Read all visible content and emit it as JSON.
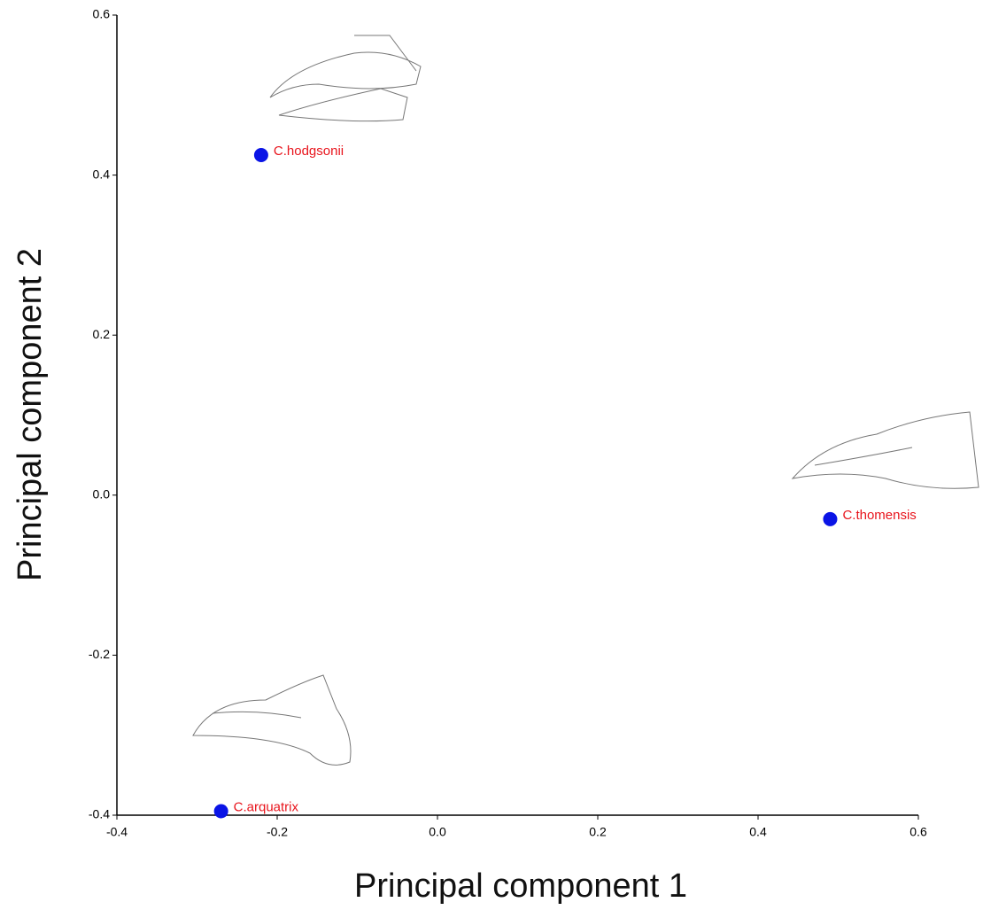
{
  "chart_data": {
    "type": "scatter",
    "xlabel": "Principal component 1",
    "ylabel": "Principal component 2",
    "xlim": [
      -0.4,
      0.6
    ],
    "ylim": [
      -0.4,
      0.6
    ],
    "xticks": [
      -0.4,
      -0.2,
      {
        "value": 0,
        "label": "0.0"
      },
      0.2,
      0.4,
      0.6
    ],
    "yticks": [
      -0.4,
      -0.2,
      {
        "value": 0,
        "label": "0.0"
      },
      0.2,
      0.4,
      0.6
    ],
    "labels": [
      "C.hodgsonii",
      "C.thomensis",
      "C.arquatrix"
    ],
    "x": [
      -0.22,
      0.49,
      -0.27
    ],
    "values": [
      0.425,
      -0.03,
      -0.395
    ],
    "color": "#0a14e6",
    "label_color": "#e8141c"
  }
}
